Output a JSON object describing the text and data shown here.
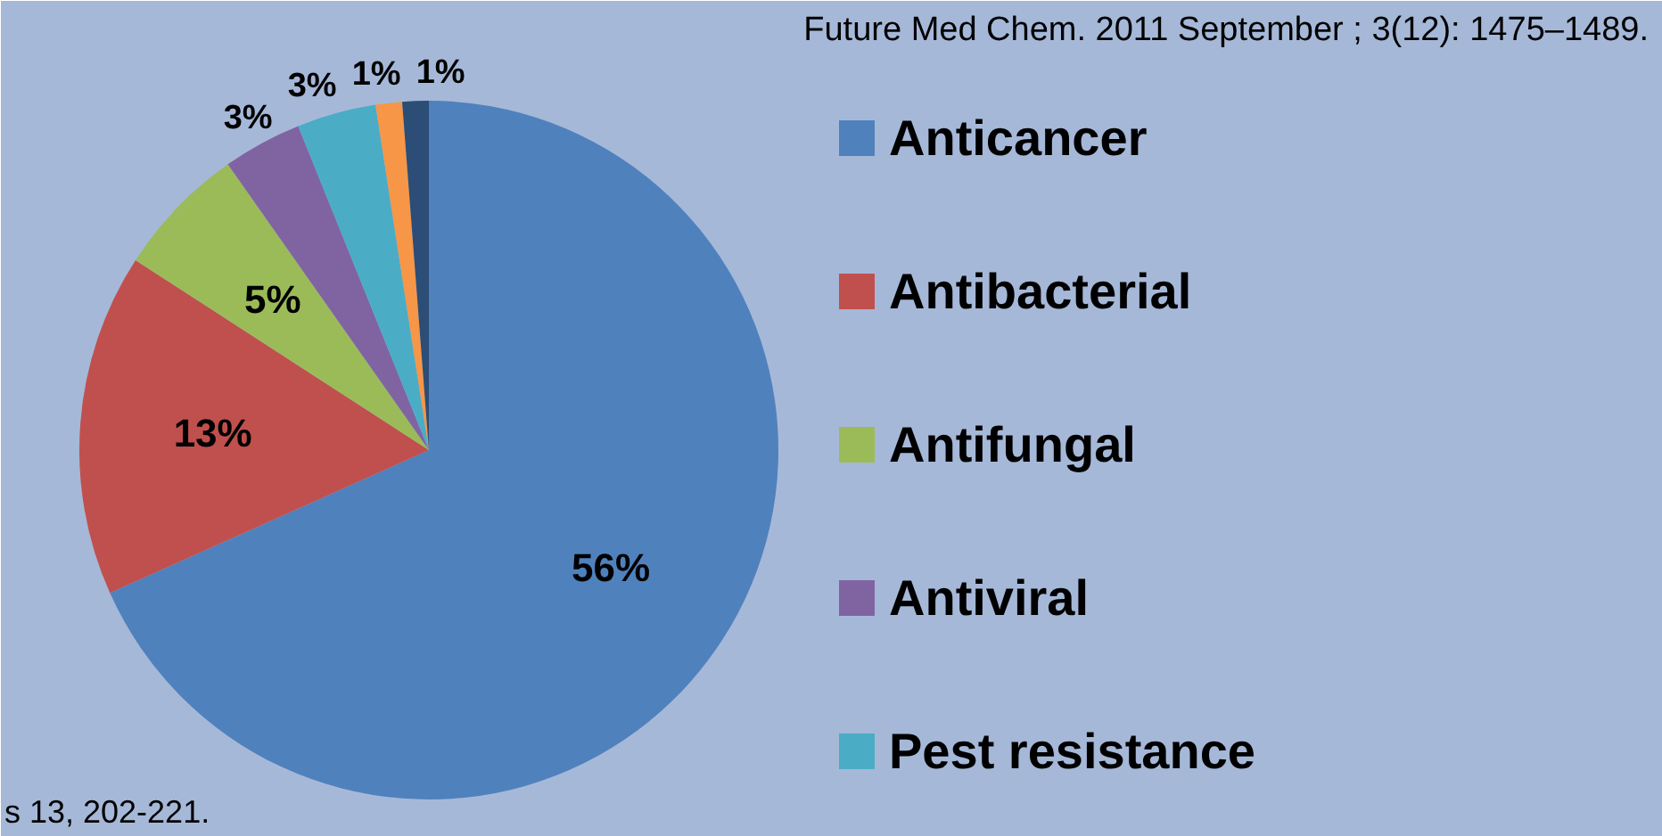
{
  "chart_data": {
    "type": "pie",
    "categories": [
      "Anticancer",
      "Antibacterial",
      "Antifungal",
      "Antiviral",
      "Pest resistance",
      null,
      null
    ],
    "values": [
      56,
      13,
      5,
      3,
      3,
      1,
      1
    ],
    "colors": [
      "#4f81bd",
      "#c0504d",
      "#9bbb59",
      "#8064a2",
      "#4bacc6",
      "#f79646",
      "#2c4d75"
    ],
    "value_labels": [
      "56%",
      "13%",
      "5%",
      "3%",
      "3%",
      "1%",
      "1%"
    ],
    "legend": "right",
    "annotations": [
      "Future Med Chem. 2011 September ; 3(12): 1475–1489.",
      "s 13, 202-221."
    ]
  }
}
